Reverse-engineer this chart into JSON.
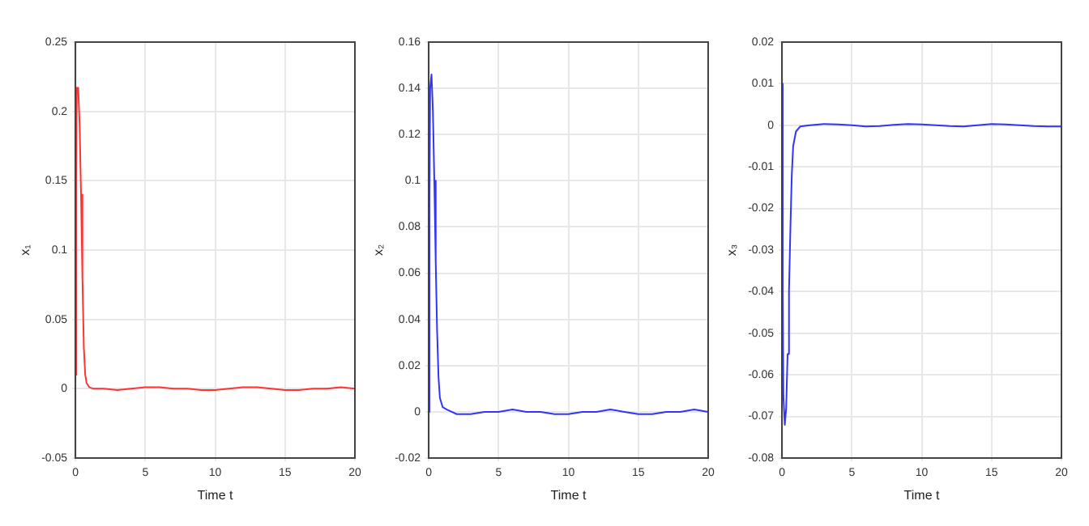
{
  "chart_data": [
    {
      "type": "line",
      "xlabel": "Time t",
      "ylabel": "x₁",
      "xlim": [
        0,
        20
      ],
      "xticks": [
        0,
        5,
        10,
        15,
        20
      ],
      "ylim": [
        -0.05,
        0.25
      ],
      "yticks": [
        -0.05,
        0,
        0.05,
        0.1,
        0.15,
        0.2,
        0.25
      ],
      "grid": true,
      "legend": false,
      "marker": "none",
      "line_style": "solid",
      "series": [
        {
          "color": "#ff3333",
          "x": [
            0,
            0.05,
            0.1,
            0.2,
            0.3,
            0.4,
            0.5,
            0.6,
            0.7,
            0.8,
            1.0,
            1.3,
            2,
            3,
            4,
            5,
            6,
            7,
            8,
            9,
            10,
            11,
            12,
            13,
            14,
            15,
            16,
            17,
            18,
            19,
            20
          ],
          "values": [
            0.01,
            0.15,
            0.217,
            0.217,
            0.19,
            0.14,
            0.08,
            0.03,
            0.01,
            0.004,
            0.001,
            0,
            0,
            -0.001,
            0,
            0.001,
            0.001,
            0,
            0,
            -0.001,
            -0.001,
            0,
            0.001,
            0.001,
            0,
            -0.001,
            -0.001,
            0,
            0,
            0.001,
            0
          ]
        }
      ]
    },
    {
      "type": "line",
      "xlabel": "Time t",
      "ylabel": "x₂",
      "xlim": [
        0,
        20
      ],
      "xticks": [
        0,
        5,
        10,
        15,
        20
      ],
      "ylim": [
        -0.02,
        0.16
      ],
      "yticks": [
        -0.02,
        0,
        0.02,
        0.04,
        0.06,
        0.08,
        0.1,
        0.12,
        0.14,
        0.16
      ],
      "grid": true,
      "legend": false,
      "marker": "none",
      "line_style": "solid",
      "series": [
        {
          "color": "#3333ff",
          "x": [
            0,
            0.05,
            0.1,
            0.2,
            0.3,
            0.4,
            0.5,
            0.6,
            0.7,
            0.8,
            1.0,
            1.3,
            2,
            3,
            4,
            5,
            6,
            7,
            8,
            9,
            10,
            11,
            12,
            13,
            14,
            15,
            16,
            17,
            18,
            19,
            20
          ],
          "values": [
            0,
            0.09,
            0.14,
            0.146,
            0.13,
            0.1,
            0.065,
            0.035,
            0.015,
            0.006,
            0.002,
            0.001,
            -0.001,
            -0.001,
            0,
            0,
            0.001,
            0,
            0,
            -0.001,
            -0.001,
            0,
            0,
            0.001,
            0,
            -0.001,
            -0.001,
            0,
            0,
            0.001,
            0
          ]
        }
      ]
    },
    {
      "type": "line",
      "xlabel": "Time t",
      "ylabel": "x₃",
      "xlim": [
        0,
        20
      ],
      "xticks": [
        0,
        5,
        10,
        15,
        20
      ],
      "ylim": [
        -0.08,
        0.02
      ],
      "yticks": [
        -0.08,
        -0.07,
        -0.06,
        -0.05,
        -0.04,
        -0.03,
        -0.02,
        -0.01,
        0,
        0.01,
        0.02
      ],
      "grid": true,
      "legend": false,
      "marker": "none",
      "line_style": "solid",
      "series": [
        {
          "color": "#3333ff",
          "x": [
            0,
            0.05,
            0.1,
            0.2,
            0.3,
            0.4,
            0.5,
            0.6,
            0.7,
            0.8,
            1.0,
            1.3,
            2,
            3,
            4,
            5,
            6,
            7,
            8,
            9,
            10,
            11,
            12,
            13,
            14,
            15,
            16,
            17,
            18,
            19,
            20
          ],
          "values": [
            0.01,
            -0.04,
            -0.065,
            -0.072,
            -0.068,
            -0.055,
            -0.04,
            -0.025,
            -0.012,
            -0.005,
            -0.0015,
            -0.0003,
            0,
            0.0003,
            0.0002,
            0,
            -0.0003,
            -0.0002,
            0.0001,
            0.0003,
            0.0002,
            0,
            -0.0002,
            -0.0003,
            0,
            0.0003,
            0.0002,
            0,
            -0.0002,
            -0.0003,
            -0.0003
          ]
        }
      ]
    }
  ]
}
